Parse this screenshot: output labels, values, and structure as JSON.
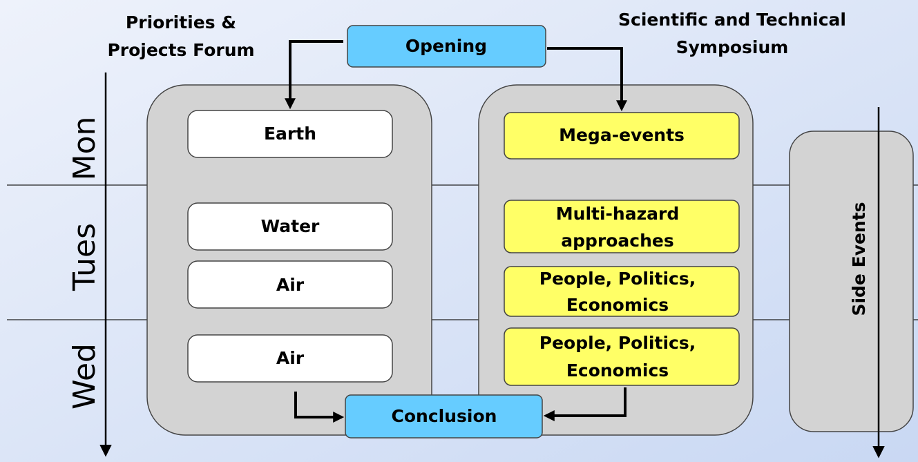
{
  "headers": {
    "left": [
      "Priorities &",
      "Projects Forum"
    ],
    "right": [
      "Scientific and Technical",
      "Symposium"
    ]
  },
  "days": [
    "Mon",
    "Tues",
    "Wed"
  ],
  "opening": "Opening",
  "conclusion": "Conclusion",
  "forum_nodes": [
    {
      "label": [
        "Earth"
      ]
    },
    {
      "label": [
        "Water"
      ]
    },
    {
      "label": [
        "Air"
      ]
    },
    {
      "label": [
        "Air"
      ]
    }
  ],
  "symposium_nodes": [
    {
      "label": [
        "Mega-events"
      ]
    },
    {
      "label": [
        "Multi-hazard",
        "approaches"
      ]
    },
    {
      "label": [
        "People, Politics,",
        "Economics"
      ]
    },
    {
      "label": [
        "People, Politics,",
        "Economics"
      ]
    }
  ],
  "side_events": "Side  Events"
}
